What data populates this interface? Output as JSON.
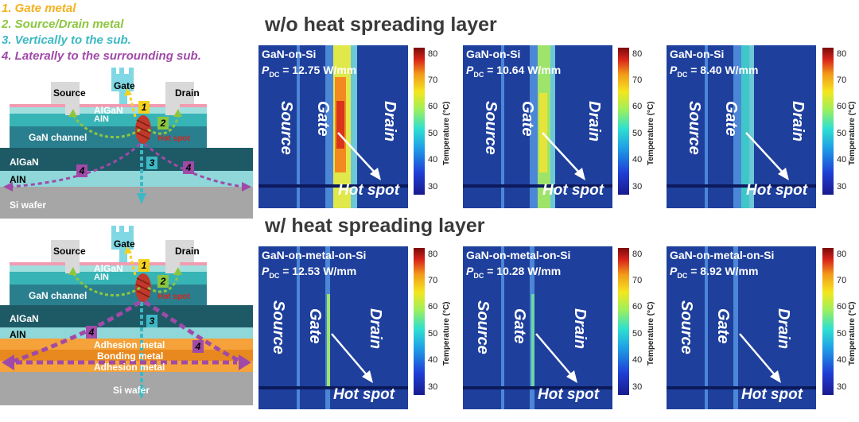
{
  "legend": {
    "item1": "1. Gate metal",
    "item2": "2. Source/Drain metal",
    "item3": "3. Vertically to the sub.",
    "item4": "4. Laterally to the surrounding sub.",
    "colors": {
      "item1": "#f2b21e",
      "item2": "#8cc63f",
      "item3": "#3cb9c4",
      "item4": "#a04aa8"
    }
  },
  "diagram_top": {
    "source": "Source",
    "gate": "Gate",
    "drain": "Drain",
    "algan_barrier": "AlGaN",
    "aln_barrier": "AlN",
    "channel": "GaN channel",
    "hotspot": "Hot spot",
    "algan": "AlGaN",
    "aln": "AlN",
    "substrate": "Si wafer",
    "n1": "1",
    "n2": "2",
    "n3": "3",
    "n4a": "4",
    "n4b": "4"
  },
  "diagram_bottom": {
    "source": "Source",
    "gate": "Gate",
    "drain": "Drain",
    "algan_barrier": "AlGaN",
    "aln_barrier": "AlN",
    "channel": "GaN channel",
    "hotspot": "Hot spot",
    "algan": "AlGaN",
    "aln": "AlN",
    "adhesion1": "Adhesion metal",
    "bonding": "Bonding metal",
    "adhesion2": "Adhesion metal",
    "substrate": "Si wafer",
    "n1": "1",
    "n2": "2",
    "n3": "3",
    "n4a": "4",
    "n4b": "4"
  },
  "sections": {
    "top": "w/o heat spreading layer",
    "bottom": "w/ heat spreading layer"
  },
  "panels_top": [
    {
      "title": "GaN-on-Si",
      "pdc_label": "P",
      "pdc_sub": "DC",
      "pdc_value": " = 12.75 W/mm",
      "source": "Source",
      "gate": "Gate",
      "drain": "Drain",
      "hotspot": "Hot spot"
    },
    {
      "title": "GaN-on-Si",
      "pdc_label": "P",
      "pdc_sub": "DC",
      "pdc_value": " = 10.64 W/mm",
      "source": "Source",
      "gate": "Gate",
      "drain": "Drain",
      "hotspot": "Hot spot"
    },
    {
      "title": "GaN-on-Si",
      "pdc_label": "P",
      "pdc_sub": "DC",
      "pdc_value": " = 8.40 W/mm",
      "source": "Source",
      "gate": "Gate",
      "drain": "Drain",
      "hotspot": "Hot spot"
    }
  ],
  "panels_bottom": [
    {
      "title": "GaN-on-metal-on-Si",
      "pdc_label": "P",
      "pdc_sub": "DC",
      "pdc_value": " = 12.53 W/mm",
      "source": "Source",
      "gate": "Gate",
      "drain": "Drain",
      "hotspot": "Hot spot"
    },
    {
      "title": "GaN-on-metal-on-Si",
      "pdc_label": "P",
      "pdc_sub": "DC",
      "pdc_value": " = 10.28 W/mm",
      "source": "Source",
      "gate": "Gate",
      "drain": "Drain",
      "hotspot": "Hot spot"
    },
    {
      "title": "GaN-on-metal-on-Si",
      "pdc_label": "P",
      "pdc_sub": "DC",
      "pdc_value": " = 8.92 W/mm",
      "source": "Source",
      "gate": "Gate",
      "drain": "Drain",
      "hotspot": "Hot spot"
    }
  ],
  "colorbar": {
    "title": "Temperature (°C)",
    "ticks": [
      "80",
      "70",
      "60",
      "50",
      "40",
      "30"
    ]
  }
}
